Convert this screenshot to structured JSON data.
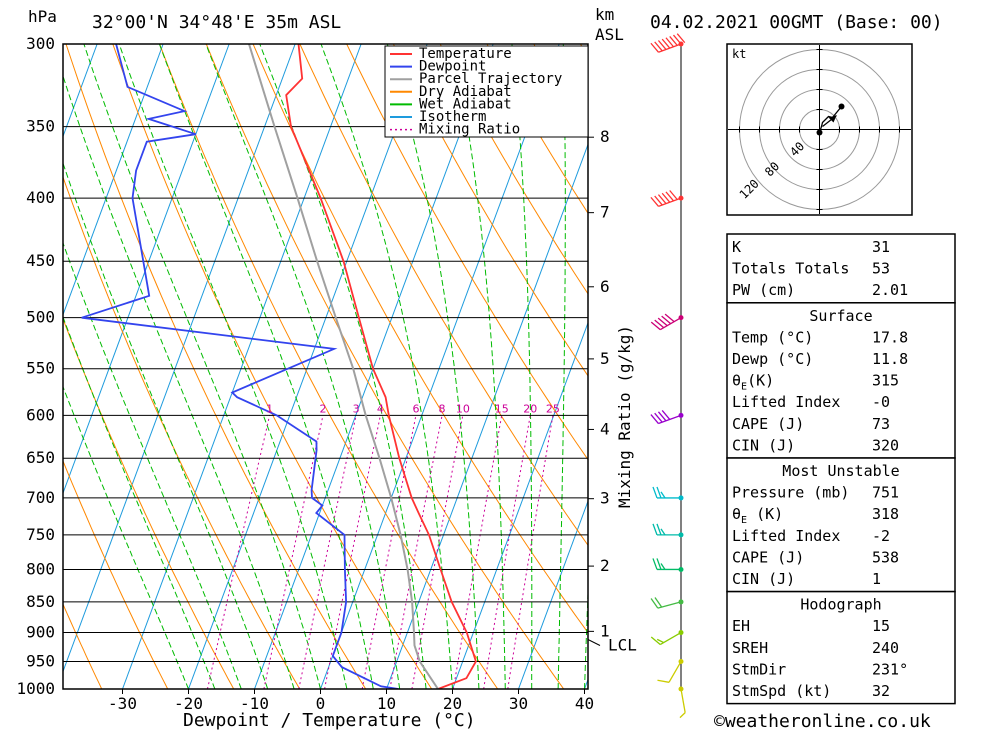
{
  "header": {
    "title": "32°00'N  34°48'E  35m  ASL",
    "date": "04.02.2021  00GMT  (Base: 00)",
    "hpa_unit": "hPa",
    "km_unit": "km",
    "asl_unit": "ASL",
    "kt_unit": "kt",
    "copyright": "©weatheronline.co.uk"
  },
  "chart_data": {
    "type": "line",
    "subtype": "skew-T log-p",
    "xlabel": "Dewpoint / Temperature (°C)",
    "ylabel": "hPa",
    "right_label": "Mixing Ratio (g/kg)",
    "xlim": [
      -40,
      40
    ],
    "ylim": [
      1000,
      300
    ],
    "y_log": true,
    "x_ticks": [
      "-30",
      "-20",
      "-10",
      "0",
      "10",
      "20",
      "30",
      "40"
    ],
    "x_tick_values": [
      -30,
      -20,
      -10,
      0,
      10,
      20,
      30,
      40
    ],
    "p_ticks": [
      "300",
      "350",
      "400",
      "450",
      "500",
      "550",
      "600",
      "650",
      "700",
      "750",
      "800",
      "850",
      "900",
      "950",
      "1000"
    ],
    "p_tick_values": [
      300,
      350,
      400,
      450,
      500,
      550,
      600,
      650,
      700,
      750,
      800,
      850,
      900,
      950,
      1000
    ],
    "km_ticks": [
      {
        "label": "8",
        "p": 357
      },
      {
        "label": "7",
        "p": 411
      },
      {
        "label": "6",
        "p": 472
      },
      {
        "label": "5",
        "p": 540
      },
      {
        "label": "4",
        "p": 616
      },
      {
        "label": "3",
        "p": 701
      },
      {
        "label": "2",
        "p": 795
      },
      {
        "label": "1",
        "p": 898
      }
    ],
    "lcl": {
      "label": "LCL",
      "p": 922
    },
    "mixing_ratio_labels": [
      "1",
      "2",
      "3",
      "4",
      "6",
      "8",
      "10",
      "15",
      "20",
      "25"
    ],
    "mixing_ratio_values": [
      1,
      2,
      3,
      4,
      6,
      8,
      10,
      15,
      20,
      25
    ],
    "grid": true,
    "legend_position": "top-right",
    "legend": [
      {
        "name": "Temperature",
        "color": "#ff3333",
        "style": "solid"
      },
      {
        "name": "Dewpoint",
        "color": "#3344ee",
        "style": "solid"
      },
      {
        "name": "Parcel Trajectory",
        "color": "#a0a0a0",
        "style": "solid"
      },
      {
        "name": "Dry Adiabat",
        "color": "#ff8800",
        "style": "solid"
      },
      {
        "name": "Wet Adiabat",
        "color": "#00bb00",
        "style": "solid"
      },
      {
        "name": "Isotherm",
        "color": "#1e9bdd",
        "style": "solid"
      },
      {
        "name": "Mixing Ratio",
        "color": "#cc0099",
        "style": "dotted"
      }
    ],
    "series": [
      {
        "name": "Temperature",
        "color": "#ff3333",
        "points": [
          [
            1000,
            17.8
          ],
          [
            980,
            21.5
          ],
          [
            950,
            22
          ],
          [
            900,
            19
          ],
          [
            850,
            15
          ],
          [
            800,
            11.5
          ],
          [
            750,
            7.8
          ],
          [
            720,
            5
          ],
          [
            700,
            3.1
          ],
          [
            650,
            -1
          ],
          [
            600,
            -5
          ],
          [
            580,
            -6.5
          ],
          [
            550,
            -10
          ],
          [
            500,
            -15
          ],
          [
            450,
            -20.5
          ],
          [
            400,
            -27.5
          ],
          [
            350,
            -36
          ],
          [
            330,
            -38.5
          ],
          [
            320,
            -37
          ],
          [
            300,
            -39.5
          ]
        ]
      },
      {
        "name": "Dewpoint",
        "color": "#3344ee",
        "points": [
          [
            1000,
            11.8
          ],
          [
            995,
            9
          ],
          [
            960,
            2
          ],
          [
            940,
            0
          ],
          [
            900,
            0
          ],
          [
            850,
            -1
          ],
          [
            800,
            -3
          ],
          [
            750,
            -5
          ],
          [
            720,
            -10.5
          ],
          [
            710,
            -10
          ],
          [
            700,
            -12
          ],
          [
            690,
            -12.5
          ],
          [
            640,
            -14
          ],
          [
            630,
            -14.5
          ],
          [
            600,
            -22
          ],
          [
            580,
            -29
          ],
          [
            575,
            -30
          ],
          [
            530,
            -17
          ],
          [
            500,
            -57
          ],
          [
            480,
            -48
          ],
          [
            400,
            -56
          ],
          [
            380,
            -57
          ],
          [
            360,
            -57
          ],
          [
            355,
            -50
          ],
          [
            345,
            -58
          ],
          [
            340,
            -53
          ],
          [
            325,
            -63
          ],
          [
            295,
            -68
          ]
        ]
      },
      {
        "name": "Parcel Trajectory",
        "color": "#a0a0a0",
        "points": [
          [
            1000,
            17.8
          ],
          [
            950,
            13.5
          ],
          [
            922,
            11.8
          ],
          [
            900,
            11
          ],
          [
            850,
            9
          ],
          [
            800,
            6.5
          ],
          [
            750,
            3.5
          ],
          [
            700,
            0
          ],
          [
            650,
            -4
          ],
          [
            600,
            -8.5
          ],
          [
            550,
            -13
          ],
          [
            500,
            -18.5
          ],
          [
            450,
            -24.5
          ],
          [
            400,
            -31
          ],
          [
            350,
            -38.5
          ],
          [
            300,
            -47
          ]
        ]
      }
    ],
    "wind_barbs": [
      {
        "p": 1000,
        "dir": 170,
        "spd": 8,
        "color": "#cccc00"
      },
      {
        "p": 950,
        "dir": 210,
        "spd": 12,
        "color": "#cccc00"
      },
      {
        "p": 900,
        "dir": 240,
        "spd": 15,
        "color": "#88cc00"
      },
      {
        "p": 850,
        "dir": 255,
        "spd": 20,
        "color": "#44bb44"
      },
      {
        "p": 800,
        "dir": 270,
        "spd": 25,
        "color": "#00bb66"
      },
      {
        "p": 750,
        "dir": 270,
        "spd": 25,
        "color": "#00bbaa"
      },
      {
        "p": 700,
        "dir": 270,
        "spd": 25,
        "color": "#00bbcc"
      },
      {
        "p": 600,
        "dir": 250,
        "spd": 40,
        "color": "#9900cc"
      },
      {
        "p": 500,
        "dir": 240,
        "spd": 50,
        "color": "#cc0077"
      },
      {
        "p": 400,
        "dir": 250,
        "spd": 60,
        "color": "#ff3333"
      },
      {
        "p": 300,
        "dir": 250,
        "spd": 80,
        "color": "#ff3333"
      }
    ],
    "hodograph": {
      "ring_labels": [
        "40",
        "80",
        "120"
      ],
      "points_uv": [
        [
          0,
          -3
        ],
        [
          2,
          3
        ],
        [
          3,
          7
        ],
        [
          9,
          13
        ],
        [
          13,
          12
        ],
        [
          22,
          23
        ]
      ]
    }
  },
  "panel": {
    "rows1": [
      {
        "label": "K",
        "value": "31"
      },
      {
        "label": "Totals Totals",
        "value": "53"
      },
      {
        "label": "PW (cm)",
        "value": "2.01"
      }
    ],
    "surface_title": "Surface",
    "surface": [
      {
        "label": "Temp (°C)",
        "value": "17.8"
      },
      {
        "label": "Dewp (°C)",
        "value": "11.8"
      },
      {
        "label": "θ",
        "sub": "E",
        "tail": "(K)",
        "value": "315"
      },
      {
        "label": "Lifted Index",
        "value": "-0"
      },
      {
        "label": "CAPE (J)",
        "value": "73"
      },
      {
        "label": "CIN (J)",
        "value": "320"
      }
    ],
    "mu_title": "Most Unstable",
    "mu": [
      {
        "label": "Pressure (mb)",
        "value": "751"
      },
      {
        "label": "θ",
        "sub": "E",
        "tail": " (K)",
        "value": "318"
      },
      {
        "label": "Lifted Index",
        "value": "-2"
      },
      {
        "label": "CAPE (J)",
        "value": "538"
      },
      {
        "label": "CIN (J)",
        "value": "1"
      }
    ],
    "hodo_title": "Hodograph",
    "hodo": [
      {
        "label": "EH",
        "value": "15"
      },
      {
        "label": "SREH",
        "value": "240"
      },
      {
        "label": "StmDir",
        "value": "231°"
      },
      {
        "label": "StmSpd (kt)",
        "value": "32"
      }
    ]
  }
}
